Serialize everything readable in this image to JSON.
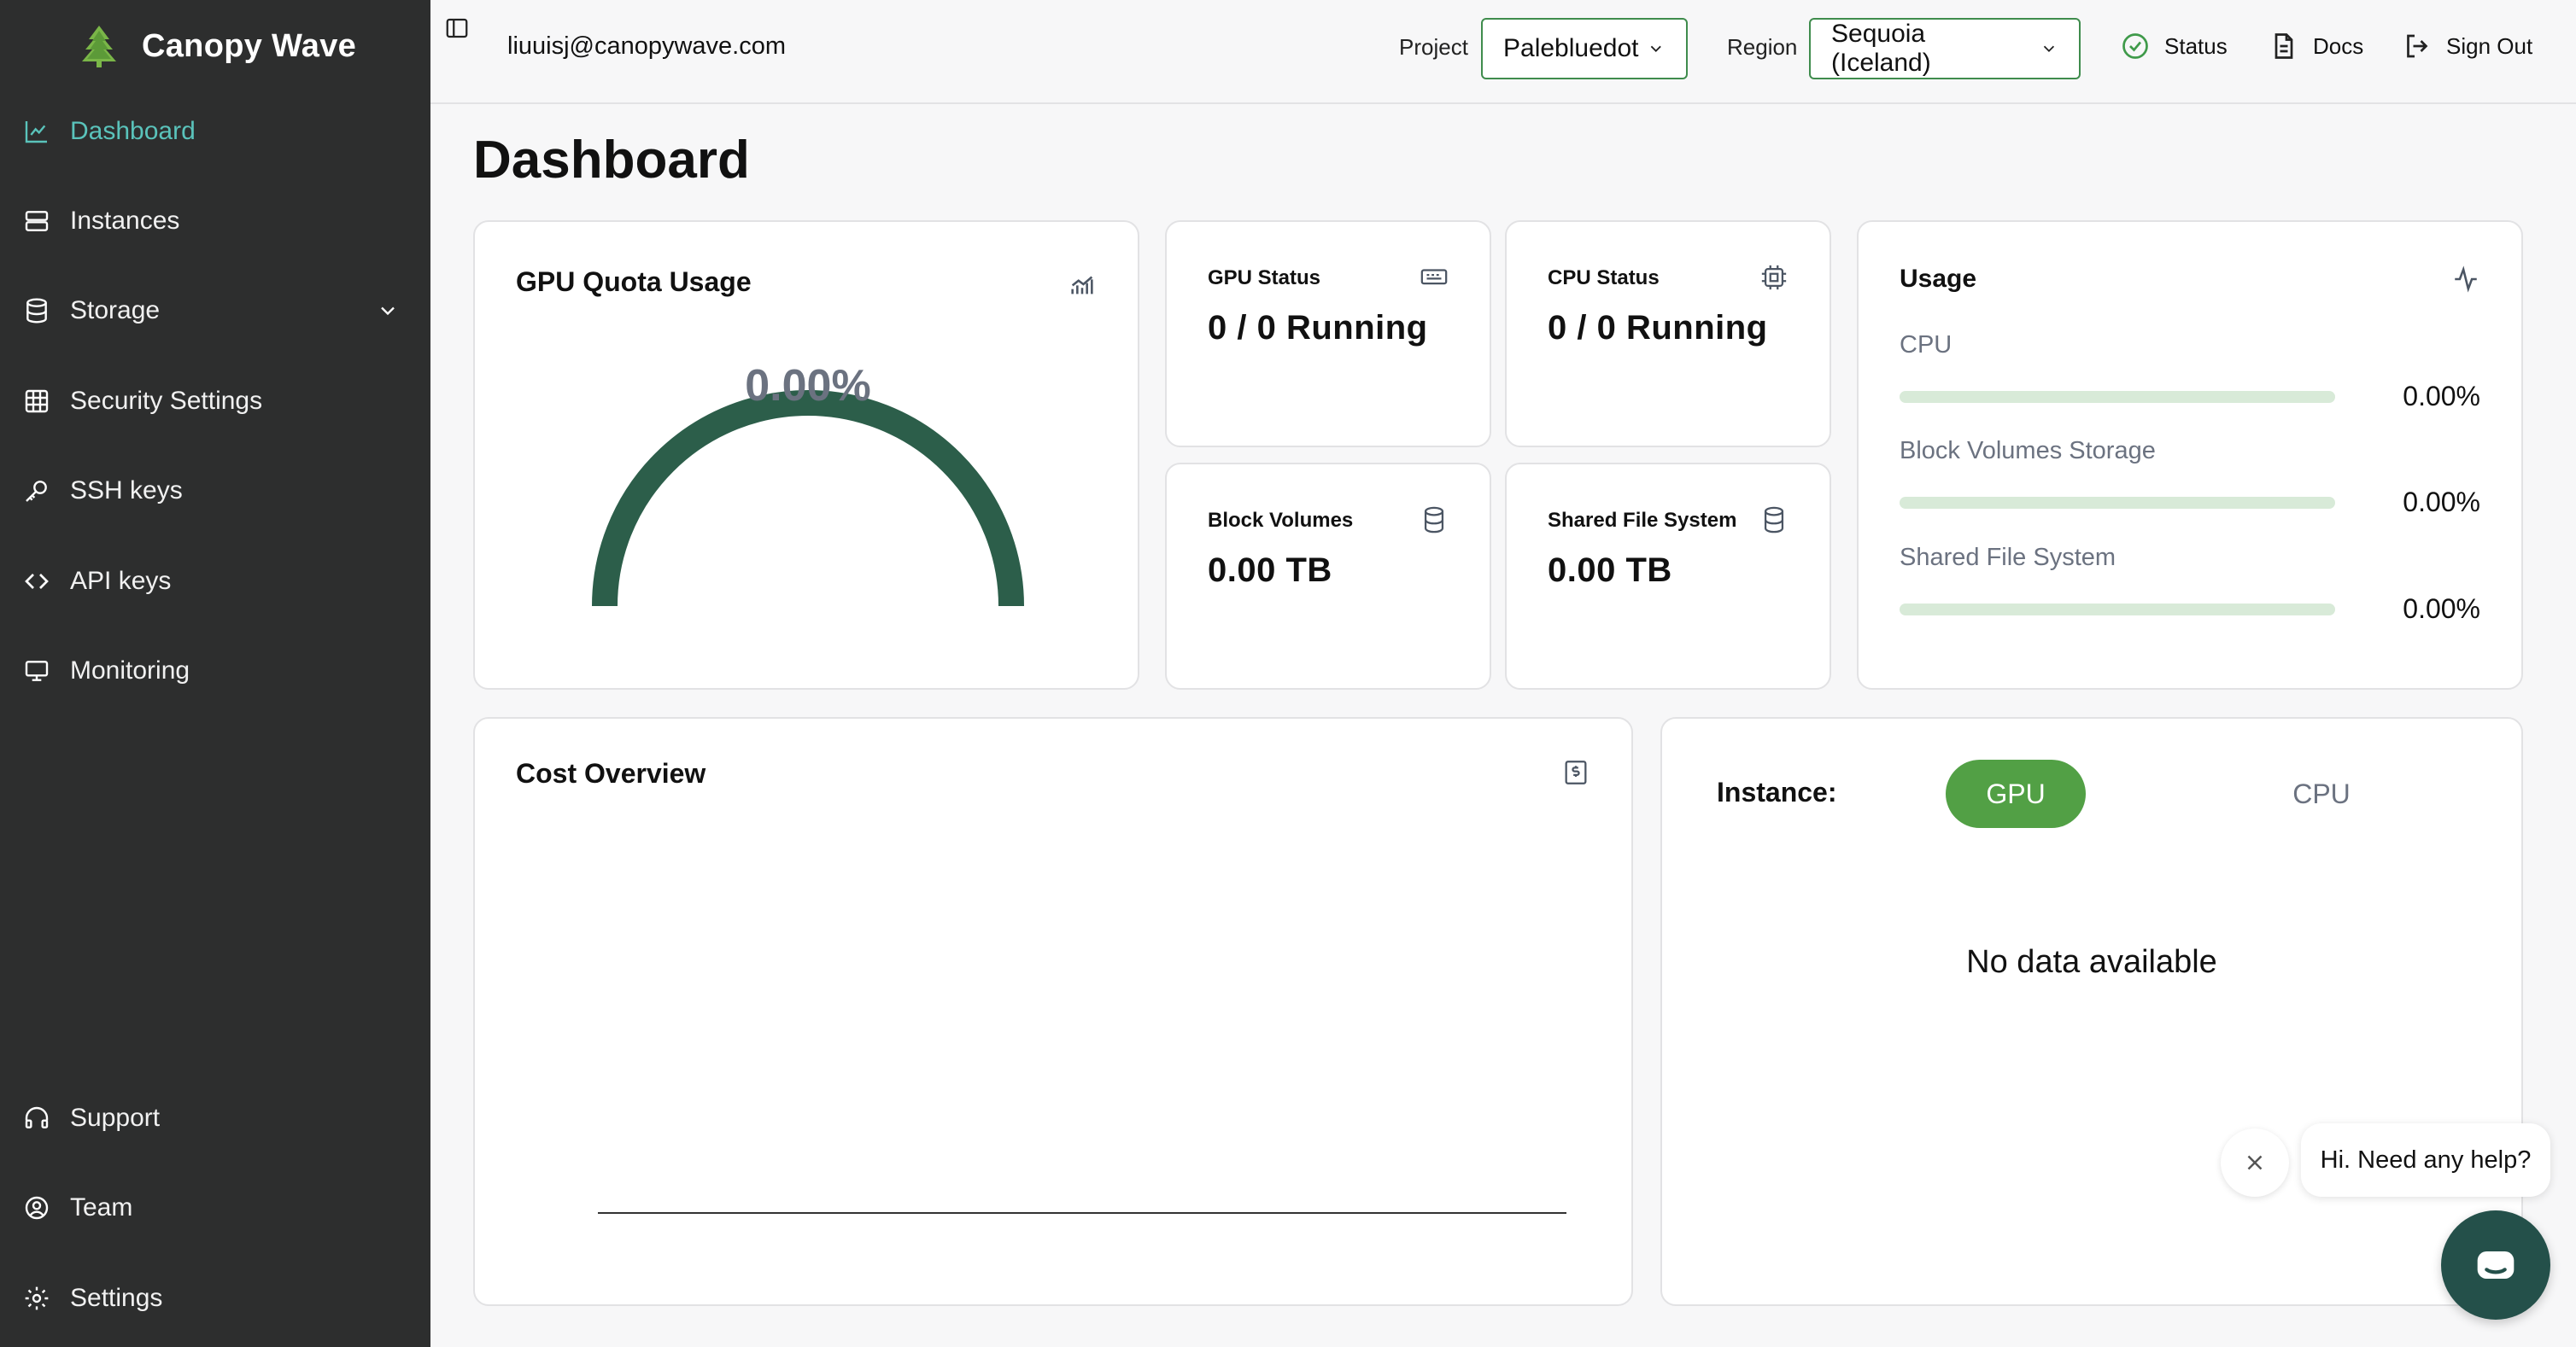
{
  "app": {
    "name": "Canopy Wave"
  },
  "sidebar": {
    "items": [
      {
        "label": "Dashboard",
        "icon": "chart-line-icon",
        "active": true
      },
      {
        "label": "Instances",
        "icon": "server-icon"
      },
      {
        "label": "Storage",
        "icon": "database-icon",
        "expandable": true
      },
      {
        "label": "Security Settings",
        "icon": "grid-shield-icon"
      },
      {
        "label": "SSH keys",
        "icon": "key-icon"
      },
      {
        "label": "API keys",
        "icon": "code-icon"
      },
      {
        "label": "Monitoring",
        "icon": "monitor-icon"
      }
    ],
    "bottom_items": [
      {
        "label": "Support",
        "icon": "headphones-icon"
      },
      {
        "label": "Team",
        "icon": "user-circle-icon"
      },
      {
        "label": "Settings",
        "icon": "gear-icon"
      }
    ]
  },
  "topbar": {
    "email": "liuuisj@canopywave.com",
    "project_label": "Project",
    "project_value": "Palebluedot",
    "region_label": "Region",
    "region_value": "Sequoia (Iceland)",
    "status": "Status",
    "docs": "Docs",
    "sign_out": "Sign Out"
  },
  "page": {
    "title": "Dashboard"
  },
  "gpu_quota": {
    "title": "GPU Quota Usage",
    "value": "0.00%",
    "fraction": 0.0
  },
  "stats": {
    "gpu_status": {
      "title": "GPU Status",
      "value": "0 / 0 Running"
    },
    "cpu_status": {
      "title": "CPU Status",
      "value": "0 / 0 Running"
    },
    "block_volumes": {
      "title": "Block Volumes",
      "value": "0.00 TB"
    },
    "shared_fs": {
      "title": "Shared File System",
      "value": "0.00 TB"
    }
  },
  "usage": {
    "title": "Usage",
    "rows": [
      {
        "label": "CPU",
        "pct": "0.00%",
        "fraction": 0.0
      },
      {
        "label": "Block Volumes Storage",
        "pct": "0.00%",
        "fraction": 0.0
      },
      {
        "label": "Shared File System",
        "pct": "0.00%",
        "fraction": 0.0
      }
    ]
  },
  "cost": {
    "title": "Cost Overview"
  },
  "instance_panel": {
    "label": "Instance:",
    "tabs": [
      "GPU",
      "CPU"
    ],
    "active_tab": "GPU",
    "empty": "No data available"
  },
  "chat": {
    "greeting": "Hi. Need any help?"
  },
  "colors": {
    "sidebar_bg": "#2d2e2e",
    "active_nav": "#5ac3bb",
    "gauge": "#2c5e4a",
    "accent_green": "#52a045",
    "bar_track": "#d8ead8",
    "chat_launcher": "#24504a"
  }
}
